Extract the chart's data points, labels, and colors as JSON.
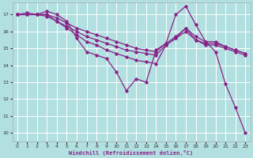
{
  "xlabel": "Windchill (Refroidissement éolien,°C)",
  "background_color": "#b2e0e0",
  "grid_color": "#ffffff",
  "line_color": "#882288",
  "xlim": [
    -0.5,
    23.5
  ],
  "ylim": [
    9.5,
    17.7
  ],
  "yticks": [
    10,
    11,
    12,
    13,
    14,
    15,
    16,
    17
  ],
  "xticks": [
    0,
    1,
    2,
    3,
    4,
    5,
    6,
    7,
    8,
    9,
    10,
    11,
    12,
    13,
    14,
    15,
    16,
    17,
    18,
    19,
    20,
    21,
    22,
    23
  ],
  "curve1_x": [
    0,
    1,
    2,
    3,
    4,
    5,
    6,
    7,
    8,
    9,
    10,
    11,
    12,
    13,
    14,
    15,
    16,
    17,
    18,
    19,
    20,
    21,
    22,
    23
  ],
  "curve1_y": [
    17.0,
    17.1,
    17.0,
    17.2,
    17.0,
    16.6,
    15.6,
    14.8,
    14.6,
    14.4,
    13.6,
    12.5,
    13.2,
    13.0,
    14.9,
    15.3,
    17.0,
    17.5,
    16.4,
    15.4,
    14.8,
    12.9,
    11.5,
    10.0
  ],
  "curve2_x": [
    0,
    1,
    2,
    3,
    4,
    5,
    6,
    7,
    8,
    9,
    10,
    11,
    12,
    13,
    14,
    15,
    16,
    17,
    18,
    19,
    20,
    21,
    22,
    23
  ],
  "curve2_y": [
    17.0,
    17.0,
    17.0,
    17.0,
    16.6,
    16.2,
    15.8,
    15.4,
    15.2,
    14.9,
    14.7,
    14.5,
    14.3,
    14.2,
    14.1,
    15.2,
    15.6,
    16.2,
    15.5,
    15.2,
    15.2,
    15.0,
    14.8,
    14.6
  ],
  "curve3_x": [
    0,
    1,
    2,
    3,
    4,
    5,
    6,
    7,
    8,
    9,
    10,
    11,
    12,
    13,
    14,
    15,
    16,
    17,
    18,
    19,
    20,
    21,
    22,
    23
  ],
  "curve3_y": [
    17.0,
    17.0,
    17.0,
    16.9,
    16.6,
    16.3,
    16.0,
    15.7,
    15.5,
    15.3,
    15.1,
    14.9,
    14.8,
    14.7,
    14.6,
    15.2,
    15.6,
    16.0,
    15.5,
    15.3,
    15.3,
    15.1,
    14.9,
    14.7
  ],
  "curve4_x": [
    0,
    1,
    2,
    3,
    4,
    5,
    6,
    7,
    8,
    9,
    10,
    11,
    12,
    13,
    14,
    15,
    16,
    17,
    18,
    19,
    20,
    21,
    22,
    23
  ],
  "curve4_y": [
    17.0,
    17.0,
    17.0,
    17.0,
    16.8,
    16.5,
    16.2,
    16.0,
    15.8,
    15.6,
    15.4,
    15.2,
    15.0,
    14.9,
    14.8,
    15.3,
    15.7,
    16.2,
    15.7,
    15.4,
    15.4,
    15.1,
    14.9,
    14.7
  ]
}
